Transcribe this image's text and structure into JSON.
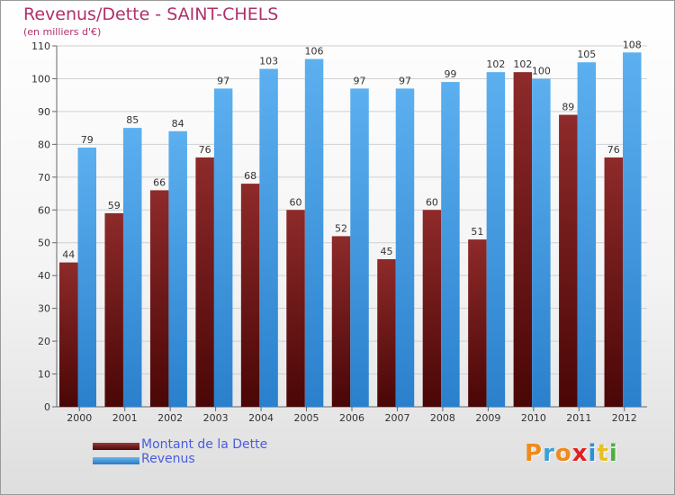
{
  "chart_data": {
    "type": "bar",
    "title": "Revenus/Dette - SAINT-CHELS",
    "subtitle": "(en milliers d'€)",
    "categories": [
      "2000",
      "2001",
      "2002",
      "2003",
      "2004",
      "2005",
      "2006",
      "2007",
      "2008",
      "2009",
      "2010",
      "2011",
      "2012"
    ],
    "series": [
      {
        "name": "Montant de la Dette",
        "color": "#7a1a1a",
        "values": [
          44,
          59,
          66,
          76,
          68,
          60,
          52,
          45,
          60,
          51,
          102,
          89,
          76
        ]
      },
      {
        "name": "Revenus",
        "color": "#3a8fd6",
        "values": [
          79,
          85,
          84,
          97,
          103,
          106,
          97,
          97,
          99,
          102,
          100,
          105,
          108
        ]
      }
    ],
    "yticks": [
      0,
      10,
      20,
      30,
      40,
      50,
      60,
      70,
      80,
      90,
      100,
      110
    ],
    "ylim": [
      0,
      110
    ],
    "grid": true,
    "legend_position": "bottom-left",
    "data_labels": true
  },
  "logo": {
    "letters": [
      {
        "ch": "P",
        "color": "#f08a1c"
      },
      {
        "ch": "r",
        "color": "#3aa0d8"
      },
      {
        "ch": "o",
        "color": "#f08a1c"
      },
      {
        "ch": "x",
        "color": "#e02020"
      },
      {
        "ch": "i",
        "color": "#2f8fd0"
      },
      {
        "ch": "t",
        "color": "#e8c020"
      },
      {
        "ch": "i",
        "color": "#4ab040"
      }
    ]
  },
  "colors": {
    "title": "#b0306a",
    "legend_text": "#4a5be0",
    "grid": "#d0d0d0"
  }
}
